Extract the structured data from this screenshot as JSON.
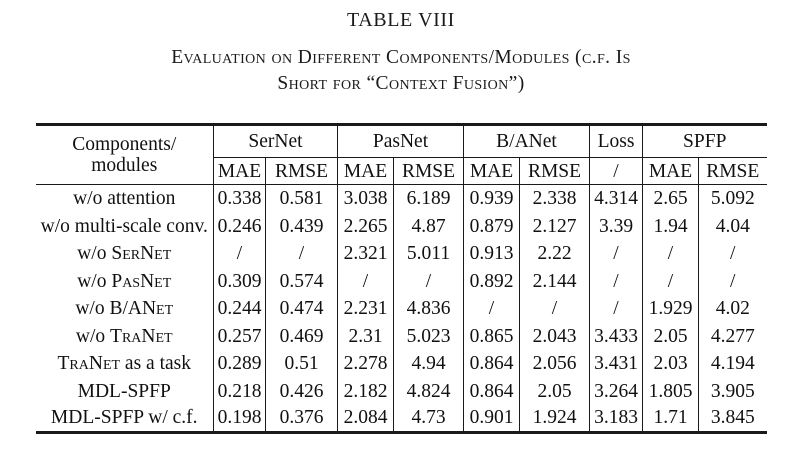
{
  "title": "TABLE VIII",
  "caption_lines": [
    "Evaluation on Different Components/Modules (c.f. Is",
    "Short for “Context Fusion”)"
  ],
  "colors": {
    "text": "#111111",
    "rule": "#1a1a1a",
    "background": "#ffffff"
  },
  "table": {
    "corner": [
      "Components/",
      "modules"
    ],
    "groups": [
      {
        "label": "SerNet",
        "cols": [
          "MAE",
          "RMSE"
        ]
      },
      {
        "label": "PasNet",
        "cols": [
          "MAE",
          "RMSE"
        ]
      },
      {
        "label": "B/ANet",
        "cols": [
          "MAE",
          "RMSE"
        ]
      },
      {
        "label": "Loss",
        "cols": [
          "/"
        ]
      },
      {
        "label": "SPFP",
        "cols": [
          "MAE",
          "RMSE"
        ]
      }
    ],
    "rows": [
      {
        "label_parts": [
          {
            "t": "w/o attention",
            "sc": false
          }
        ],
        "values": [
          "0.338",
          "0.581",
          "3.038",
          "6.189",
          "0.939",
          "2.338",
          "4.314",
          "2.65",
          "5.092"
        ]
      },
      {
        "label_parts": [
          {
            "t": "w/o multi-scale conv.",
            "sc": false
          }
        ],
        "values": [
          "0.246",
          "0.439",
          "2.265",
          "4.87",
          "0.879",
          "2.127",
          "3.39",
          "1.94",
          "4.04"
        ]
      },
      {
        "label_parts": [
          {
            "t": "w/o ",
            "sc": false
          },
          {
            "t": "SerNet",
            "sc": true
          }
        ],
        "values": [
          "/",
          "/",
          "2.321",
          "5.011",
          "0.913",
          "2.22",
          "/",
          "/",
          "/"
        ]
      },
      {
        "label_parts": [
          {
            "t": "w/o ",
            "sc": false
          },
          {
            "t": "PasNet",
            "sc": true
          }
        ],
        "values": [
          "0.309",
          "0.574",
          "/",
          "/",
          "0.892",
          "2.144",
          "/",
          "/",
          "/"
        ]
      },
      {
        "label_parts": [
          {
            "t": "w/o B/A",
            "sc": false
          },
          {
            "t": "Net",
            "sc": true
          }
        ],
        "values": [
          "0.244",
          "0.474",
          "2.231",
          "4.836",
          "/",
          "/",
          "/",
          "1.929",
          "4.02"
        ]
      },
      {
        "label_parts": [
          {
            "t": "w/o ",
            "sc": false
          },
          {
            "t": "TraNet",
            "sc": true
          }
        ],
        "values": [
          "0.257",
          "0.469",
          "2.31",
          "5.023",
          "0.865",
          "2.043",
          "3.433",
          "2.05",
          "4.277"
        ]
      },
      {
        "label_parts": [
          {
            "t": "TraNet",
            "sc": true
          },
          {
            "t": " as a task",
            "sc": false
          }
        ],
        "values": [
          "0.289",
          "0.51",
          "2.278",
          "4.94",
          "0.864",
          "2.056",
          "3.431",
          "2.03",
          "4.194"
        ]
      },
      {
        "label_parts": [
          {
            "t": "MDL-SPFP",
            "sc": false
          }
        ],
        "values": [
          "0.218",
          "0.426",
          "2.182",
          "4.824",
          "0.864",
          "2.05",
          "3.264",
          "1.805",
          "3.905"
        ]
      },
      {
        "label_parts": [
          {
            "t": "MDL-SPFP w/ c.f.",
            "sc": false
          }
        ],
        "values": [
          "0.198",
          "0.376",
          "2.084",
          "4.73",
          "0.901",
          "1.924",
          "3.183",
          "1.71",
          "3.845"
        ]
      }
    ]
  }
}
